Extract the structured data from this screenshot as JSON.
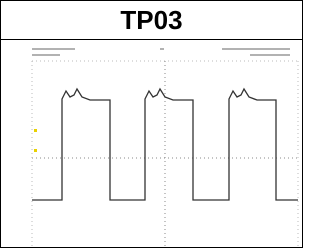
{
  "title": "TP03"
}
